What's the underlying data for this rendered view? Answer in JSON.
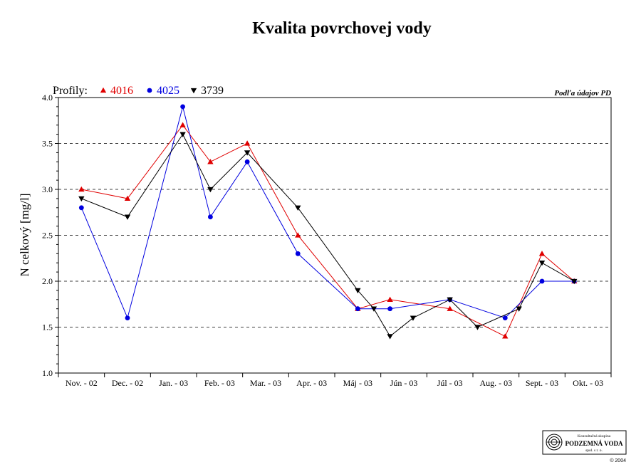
{
  "chart_data": {
    "type": "line",
    "title": "Kvalita povrchovej vody",
    "source_note": "Podľa údajov PD",
    "ylabel": "N celkový [mg/l]",
    "xlabel": "",
    "legend_title": "Profily:",
    "legend_placement": "top-left",
    "ylim": [
      1.0,
      4.0
    ],
    "yticks": [
      1.0,
      1.5,
      2.0,
      2.5,
      3.0,
      3.5,
      4.0
    ],
    "yticks_labels": [
      "1.0",
      "1.5",
      "2.0",
      "2.5",
      "3.0",
      "3.5",
      "4.0"
    ],
    "grid": "horizontal-dashed",
    "categories": [
      "Nov. - 02",
      "Dec. - 02",
      "Jan. - 03",
      "Feb. - 03",
      "Mar. - 03",
      "Apr. - 03",
      "Máj - 03",
      "Jún - 03",
      "Júl - 03",
      "Aug. - 03",
      "Sept. - 03",
      "Okt. - 03"
    ],
    "series": [
      {
        "name": "4016",
        "color": "#e00000",
        "marker": "triangle-up",
        "x": [
          0.5,
          1.5,
          2.7,
          3.3,
          4.1,
          5.2,
          6.5,
          7.2,
          8.5,
          9.7,
          10.5,
          11.2
        ],
        "values": [
          3.0,
          2.9,
          3.7,
          3.3,
          3.5,
          2.5,
          1.7,
          1.8,
          1.7,
          1.4,
          2.3,
          2.0
        ]
      },
      {
        "name": "4025",
        "color": "#0000e0",
        "marker": "circle",
        "x": [
          0.5,
          1.5,
          2.7,
          3.3,
          4.1,
          5.2,
          6.5,
          7.2,
          8.5,
          9.7,
          10.5,
          11.2
        ],
        "values": [
          2.8,
          1.6,
          3.9,
          2.7,
          3.3,
          2.3,
          1.7,
          1.7,
          1.8,
          1.6,
          2.0,
          2.0
        ]
      },
      {
        "name": "3739",
        "color": "#000000",
        "marker": "triangle-down",
        "x": [
          0.5,
          1.5,
          2.7,
          3.3,
          4.1,
          5.2,
          6.5,
          6.85,
          7.2,
          7.7,
          8.5,
          9.1,
          10.0,
          10.5,
          11.2
        ],
        "values": [
          2.9,
          2.7,
          3.6,
          3.0,
          3.4,
          2.8,
          1.9,
          1.7,
          1.4,
          1.6,
          1.8,
          1.5,
          1.7,
          2.2,
          2.0
        ]
      }
    ]
  },
  "logo": {
    "line1": "Konzultačná skupina",
    "line2": "PODZEMNÁ VODA",
    "line3": "spol. s r. o.",
    "copyright": "© 2004"
  }
}
